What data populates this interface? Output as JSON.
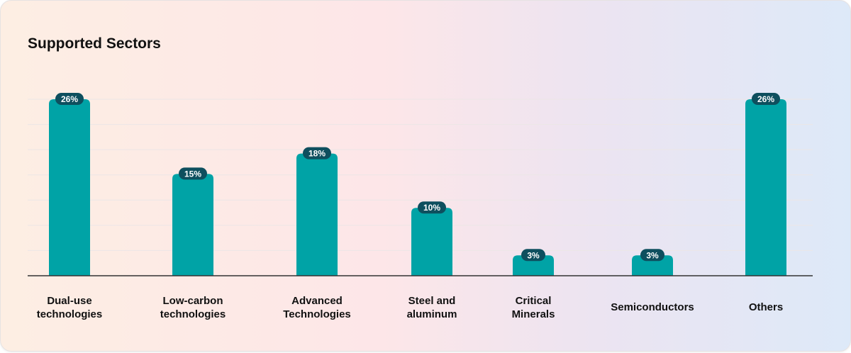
{
  "chart_data": {
    "type": "bar",
    "title": "Supported Sectors",
    "categories": [
      "Dual-use\ntechnologies",
      "Low-carbon\ntechnologies",
      "Advanced\nTechnologies",
      "Steel and\naluminum",
      "Critical\nMinerals",
      "Semiconductors",
      "Others"
    ],
    "values": [
      26,
      15,
      18,
      10,
      3,
      3,
      26
    ],
    "value_labels": [
      "26%",
      "15%",
      "18%",
      "10%",
      "3%",
      "3%",
      "26%"
    ],
    "unit": "%",
    "ylim": [
      0,
      26
    ],
    "grid": true,
    "colors": {
      "bar": "#00a3a6",
      "badge": "#0e4f5e",
      "axis": "#333333",
      "grid": "#ece6e6"
    }
  }
}
